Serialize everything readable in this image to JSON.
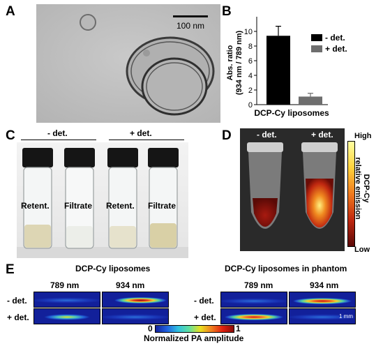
{
  "panels": {
    "a": {
      "label": "A",
      "scale_bar": "100 nm"
    },
    "b": {
      "label": "B"
    },
    "c": {
      "label": "C",
      "group_left": "- det.",
      "group_right": "+ det.",
      "vials": [
        "Retent.",
        "Filtrate",
        "Retent.",
        "Filtrate"
      ]
    },
    "d": {
      "label": "D",
      "left": "- det.",
      "right": "+ det.",
      "cbar_high": "High",
      "cbar_low": "Low",
      "cbar_title_1": "DCP-Cy",
      "cbar_title_2": "relative emission"
    },
    "e": {
      "label": "E",
      "left_title": "DCP-Cy liposomes",
      "right_title": "DCP-Cy liposomes in phantom",
      "wl1": "789 nm",
      "wl2": "934 nm",
      "row1": "- det.",
      "row2": "+ det.",
      "scale": "1 mm",
      "cbar_min": "0",
      "cbar_max": "1",
      "cbar_label": "Normalized PA amplitude"
    }
  },
  "chart_data": {
    "type": "bar",
    "categories": [
      "- det.",
      "+ det."
    ],
    "values": [
      9.4,
      1.1
    ],
    "errors": [
      1.3,
      0.45
    ],
    "colors": [
      "#000000",
      "#6e6e6e"
    ],
    "xlabel": "DCP-Cy liposomes",
    "ylabel_1": "Abs. ratio",
    "ylabel_2": "(934 nm / 789 nm)",
    "yticks": [
      "0",
      "2",
      "4",
      "6",
      "8",
      "10"
    ],
    "ylim": [
      0,
      12
    ],
    "legend": [
      "- det.",
      "+ det."
    ],
    "legend_position": "right"
  }
}
